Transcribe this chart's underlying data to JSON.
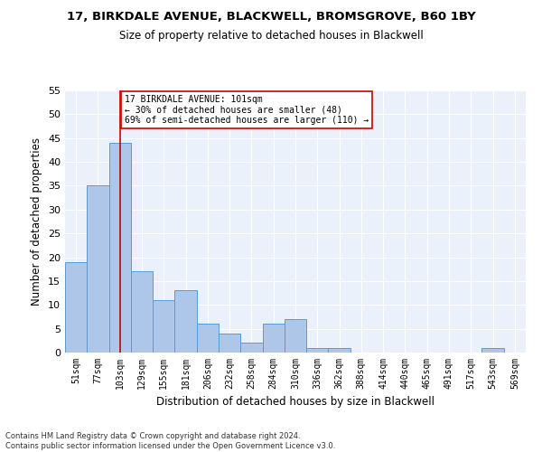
{
  "title1": "17, BIRKDALE AVENUE, BLACKWELL, BROMSGROVE, B60 1BY",
  "title2": "Size of property relative to detached houses in Blackwell",
  "xlabel": "Distribution of detached houses by size in Blackwell",
  "ylabel": "Number of detached properties",
  "categories": [
    "51sqm",
    "77sqm",
    "103sqm",
    "129sqm",
    "155sqm",
    "181sqm",
    "206sqm",
    "232sqm",
    "258sqm",
    "284sqm",
    "310sqm",
    "336sqm",
    "362sqm",
    "388sqm",
    "414sqm",
    "440sqm",
    "465sqm",
    "491sqm",
    "517sqm",
    "543sqm",
    "569sqm"
  ],
  "values": [
    19,
    35,
    44,
    17,
    11,
    13,
    6,
    4,
    2,
    6,
    7,
    1,
    1,
    0,
    0,
    0,
    0,
    0,
    0,
    1,
    0
  ],
  "bar_color": "#aec6e8",
  "bar_edge_color": "#5b9bd5",
  "background_color": "#eaf1fb",
  "grid_color": "#ffffff",
  "vline_x": 2,
  "vline_color": "#cc0000",
  "annotation_text": "17 BIRKDALE AVENUE: 101sqm\n← 30% of detached houses are smaller (48)\n69% of semi-detached houses are larger (110) →",
  "annotation_box_color": "#ffffff",
  "annotation_box_edge": "#cc0000",
  "ylim": [
    0,
    55
  ],
  "yticks": [
    0,
    5,
    10,
    15,
    20,
    25,
    30,
    35,
    40,
    45,
    50,
    55
  ],
  "footnote": "Contains HM Land Registry data © Crown copyright and database right 2024.\nContains public sector information licensed under the Open Government Licence v3.0."
}
